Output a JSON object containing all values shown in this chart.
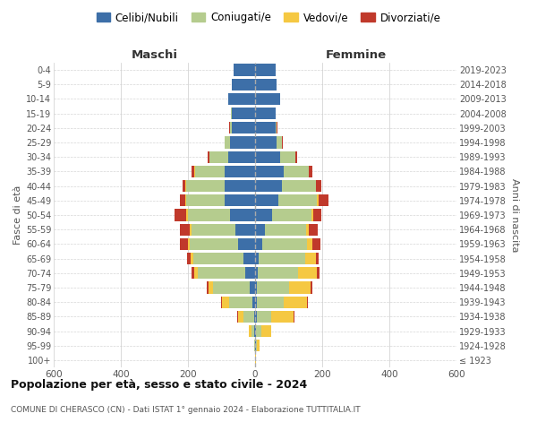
{
  "age_groups": [
    "100+",
    "95-99",
    "90-94",
    "85-89",
    "80-84",
    "75-79",
    "70-74",
    "65-69",
    "60-64",
    "55-59",
    "50-54",
    "45-49",
    "40-44",
    "35-39",
    "30-34",
    "25-29",
    "20-24",
    "15-19",
    "10-14",
    "5-9",
    "0-4"
  ],
  "birth_years": [
    "≤ 1923",
    "1924-1928",
    "1929-1933",
    "1934-1938",
    "1939-1943",
    "1944-1948",
    "1949-1953",
    "1954-1958",
    "1959-1963",
    "1964-1968",
    "1969-1973",
    "1974-1978",
    "1979-1983",
    "1984-1988",
    "1989-1993",
    "1994-1998",
    "1999-2003",
    "2004-2008",
    "2009-2013",
    "2014-2018",
    "2019-2023"
  ],
  "colors": {
    "celibi": "#3d6fa8",
    "coniugati": "#b5cc8e",
    "vedovi": "#f5c842",
    "divorziati": "#c0392b"
  },
  "males": {
    "celibi": [
      0,
      1,
      2,
      4,
      8,
      15,
      30,
      35,
      50,
      60,
      75,
      90,
      90,
      90,
      80,
      75,
      70,
      70,
      80,
      70,
      65
    ],
    "coniugati": [
      0,
      1,
      8,
      30,
      70,
      110,
      140,
      150,
      145,
      130,
      125,
      115,
      115,
      90,
      55,
      15,
      5,
      2,
      0,
      0,
      0
    ],
    "vedovi": [
      0,
      2,
      8,
      18,
      20,
      15,
      12,
      8,
      5,
      5,
      5,
      3,
      2,
      1,
      1,
      1,
      1,
      0,
      0,
      0,
      0
    ],
    "divorziati": [
      0,
      0,
      1,
      2,
      3,
      5,
      8,
      10,
      25,
      30,
      35,
      15,
      8,
      8,
      5,
      1,
      1,
      0,
      0,
      0,
      0
    ]
  },
  "females": {
    "celibi": [
      1,
      2,
      3,
      4,
      5,
      5,
      8,
      10,
      20,
      28,
      50,
      70,
      80,
      85,
      75,
      65,
      60,
      60,
      75,
      65,
      60
    ],
    "coniugati": [
      0,
      2,
      15,
      45,
      80,
      95,
      120,
      140,
      135,
      125,
      118,
      115,
      100,
      75,
      45,
      15,
      5,
      1,
      0,
      0,
      0
    ],
    "vedovi": [
      2,
      8,
      30,
      65,
      70,
      65,
      55,
      30,
      15,
      8,
      5,
      3,
      2,
      1,
      1,
      0,
      0,
      0,
      0,
      0,
      0
    ],
    "divorziati": [
      0,
      0,
      1,
      2,
      3,
      5,
      8,
      10,
      25,
      25,
      25,
      30,
      15,
      10,
      5,
      2,
      1,
      0,
      0,
      0,
      0
    ]
  },
  "xlim": 600,
  "title": "Popolazione per età, sesso e stato civile - 2024",
  "subtitle": "COMUNE DI CHERASCO (CN) - Dati ISTAT 1° gennaio 2024 - Elaborazione TUTTITALIA.IT",
  "xlabel_left": "Maschi",
  "xlabel_right": "Femmine",
  "ylabel_left": "Fasce di età",
  "ylabel_right": "Anni di nascita",
  "legend_labels": [
    "Celibi/Nubili",
    "Coniugati/e",
    "Vedovi/e",
    "Divorziati/e"
  ],
  "background_color": "#ffffff",
  "grid_color": "#cccccc"
}
